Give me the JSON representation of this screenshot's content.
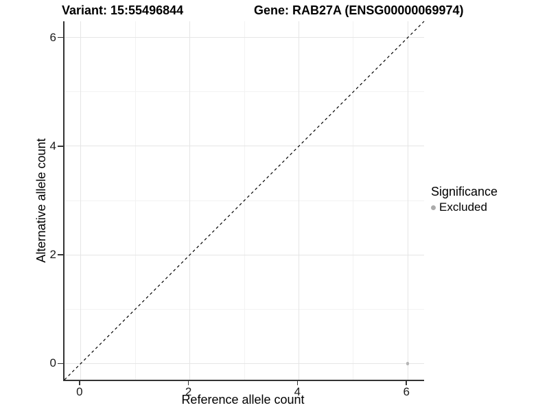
{
  "header": {
    "variant_title": "Variant: 15:55496844",
    "gene_title": "Gene: RAB27A (ENSG00000069974)"
  },
  "chart_data": {
    "type": "scatter",
    "title_left": "Variant: 15:55496844",
    "title_right": "Gene: RAB27A (ENSG00000069974)",
    "xlabel": "Reference allele count",
    "ylabel": "Alternative allele count",
    "xlim": [
      -0.3,
      6.3
    ],
    "ylim": [
      -0.3,
      6.3
    ],
    "x_ticks": [
      0,
      2,
      4,
      6
    ],
    "y_ticks": [
      0,
      2,
      4,
      6
    ],
    "x_minor_ticks": [
      1,
      3,
      5
    ],
    "y_minor_ticks": [
      1,
      3,
      5
    ],
    "grid": "major and minor gridlines on white background",
    "reference_line": {
      "type": "identity",
      "style": "dashed",
      "color": "#000000",
      "from": [
        -0.3,
        -0.3
      ],
      "to": [
        6.3,
        6.3
      ]
    },
    "series": [
      {
        "name": "Excluded",
        "color": "#b5b5b5",
        "points": [
          {
            "x": 6,
            "y": 0
          }
        ]
      }
    ],
    "legend": {
      "title": "Significance",
      "position": "right",
      "entries": [
        {
          "label": "Excluded",
          "color": "#ababab"
        }
      ]
    }
  },
  "colors": {
    "axis_line": "#333333",
    "grid_major": "#e5e5e5",
    "grid_minor": "#f2f2f2",
    "excluded_point": "#b5b5b5"
  }
}
